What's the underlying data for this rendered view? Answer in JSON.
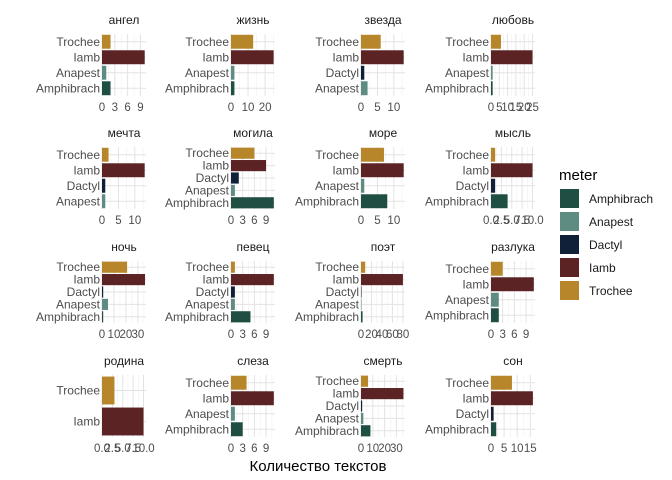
{
  "chart_data": {
    "type": "bar",
    "orientation": "horizontal",
    "facet_layout": {
      "rows": 4,
      "cols": 4
    },
    "xlabel": "Количество текстов",
    "legend": {
      "title": "meter",
      "position": "right",
      "entries": [
        {
          "name": "Amphibrach",
          "color": "#1f4e43"
        },
        {
          "name": "Anapest",
          "color": "#5f8c82"
        },
        {
          "name": "Dactyl",
          "color": "#0f2038"
        },
        {
          "name": "Iamb",
          "color": "#5b2323"
        },
        {
          "name": "Trochee",
          "color": "#b8862a"
        }
      ]
    },
    "facets": [
      {
        "title": "ангел",
        "xlim": [
          0,
          10.3
        ],
        "ticks": [
          "0",
          "3",
          "6",
          "9"
        ],
        "tick_values": [
          0,
          3,
          6,
          9
        ],
        "bars": [
          {
            "meter": "Trochee",
            "value": 2
          },
          {
            "meter": "Iamb",
            "value": 10
          },
          {
            "meter": "Anapest",
            "value": 1
          },
          {
            "meter": "Amphibrach",
            "value": 2
          }
        ]
      },
      {
        "title": "жизнь",
        "xlim": [
          0,
          25.8
        ],
        "ticks": [
          "0",
          "10",
          "20"
        ],
        "tick_values": [
          0,
          10,
          20
        ],
        "bars": [
          {
            "meter": "Trochee",
            "value": 13
          },
          {
            "meter": "Iamb",
            "value": 25
          },
          {
            "meter": "Anapest",
            "value": 2
          },
          {
            "meter": "Amphibrach",
            "value": 2
          }
        ]
      },
      {
        "title": "звезда",
        "xlim": [
          0,
          13.4
        ],
        "ticks": [
          "0",
          "5",
          "10"
        ],
        "tick_values": [
          0,
          5,
          10
        ],
        "bars": [
          {
            "meter": "Trochee",
            "value": 6
          },
          {
            "meter": "Iamb",
            "value": 13
          },
          {
            "meter": "Dactyl",
            "value": 1
          },
          {
            "meter": "Anapest",
            "value": 2
          }
        ]
      },
      {
        "title": "любовь",
        "xlim": [
          0,
          26.5
        ],
        "ticks": [
          "0",
          "5",
          "10",
          "15",
          "20",
          "25"
        ],
        "tick_values": [
          0,
          5,
          10,
          15,
          20,
          25
        ],
        "bars": [
          {
            "meter": "Trochee",
            "value": 6
          },
          {
            "meter": "Iamb",
            "value": 25
          },
          {
            "meter": "Anapest",
            "value": 1
          },
          {
            "meter": "Amphibrach",
            "value": 1
          }
        ]
      },
      {
        "title": "мечта",
        "xlim": [
          0,
          13.4
        ],
        "ticks": [
          "0",
          "5",
          "10"
        ],
        "tick_values": [
          0,
          5,
          10
        ],
        "bars": [
          {
            "meter": "Trochee",
            "value": 2
          },
          {
            "meter": "Iamb",
            "value": 13
          },
          {
            "meter": "Dactyl",
            "value": 1
          },
          {
            "meter": "Anapest",
            "value": 1
          }
        ]
      },
      {
        "title": "могила",
        "xlim": [
          0,
          11.3
        ],
        "ticks": [
          "0",
          "3",
          "6",
          "9"
        ],
        "tick_values": [
          0,
          3,
          6,
          9
        ],
        "bars": [
          {
            "meter": "Trochee",
            "value": 6
          },
          {
            "meter": "Iamb",
            "value": 9
          },
          {
            "meter": "Dactyl",
            "value": 2
          },
          {
            "meter": "Anapest",
            "value": 1
          },
          {
            "meter": "Amphibrach",
            "value": 11
          }
        ]
      },
      {
        "title": "море",
        "xlim": [
          0,
          13.4
        ],
        "ticks": [
          "0",
          "5",
          "10"
        ],
        "tick_values": [
          0,
          5,
          10
        ],
        "bars": [
          {
            "meter": "Trochee",
            "value": 7
          },
          {
            "meter": "Iamb",
            "value": 13
          },
          {
            "meter": "Anapest",
            "value": 1
          },
          {
            "meter": "Amphibrach",
            "value": 8
          }
        ]
      },
      {
        "title": "мысль",
        "xlim": [
          0,
          10.6
        ],
        "ticks": [
          "0.0",
          "2.5",
          "5.0",
          "7.5",
          "10.0"
        ],
        "tick_values": [
          0,
          2.5,
          5,
          7.5,
          10
        ],
        "bars": [
          {
            "meter": "Trochee",
            "value": 1
          },
          {
            "meter": "Iamb",
            "value": 10
          },
          {
            "meter": "Dactyl",
            "value": 1
          },
          {
            "meter": "Amphibrach",
            "value": 4
          }
        ]
      },
      {
        "title": "ночь",
        "xlim": [
          0,
          36.8
        ],
        "ticks": [
          "0",
          "10",
          "20",
          "30"
        ],
        "tick_values": [
          0,
          10,
          20,
          30
        ],
        "bars": [
          {
            "meter": "Trochee",
            "value": 21
          },
          {
            "meter": "Iamb",
            "value": 36
          },
          {
            "meter": "Dactyl",
            "value": 1
          },
          {
            "meter": "Anapest",
            "value": 5
          },
          {
            "meter": "Amphibrach",
            "value": 1
          }
        ]
      },
      {
        "title": "певец",
        "xlim": [
          0,
          11.3
        ],
        "ticks": [
          "0",
          "3",
          "6",
          "9"
        ],
        "tick_values": [
          0,
          3,
          6,
          9
        ],
        "bars": [
          {
            "meter": "Trochee",
            "value": 1
          },
          {
            "meter": "Iamb",
            "value": 11
          },
          {
            "meter": "Dactyl",
            "value": 1
          },
          {
            "meter": "Anapest",
            "value": 1
          },
          {
            "meter": "Amphibrach",
            "value": 5
          }
        ]
      },
      {
        "title": "поэт",
        "xlim": [
          0,
          84
        ],
        "ticks": [
          "0",
          "20",
          "40",
          "60",
          "80"
        ],
        "tick_values": [
          0,
          20,
          40,
          60,
          80
        ],
        "bars": [
          {
            "meter": "Trochee",
            "value": 8
          },
          {
            "meter": "Iamb",
            "value": 80
          },
          {
            "meter": "Dactyl",
            "value": 1
          },
          {
            "meter": "Anapest",
            "value": 1
          },
          {
            "meter": "Amphibrach",
            "value": 3
          }
        ]
      },
      {
        "title": "разлука",
        "xlim": [
          0,
          11.3
        ],
        "ticks": [
          "0",
          "3",
          "6",
          "9"
        ],
        "tick_values": [
          0,
          3,
          6,
          9
        ],
        "bars": [
          {
            "meter": "Trochee",
            "value": 3
          },
          {
            "meter": "Iamb",
            "value": 11
          },
          {
            "meter": "Anapest",
            "value": 2
          },
          {
            "meter": "Amphibrach",
            "value": 2
          }
        ]
      },
      {
        "title": "родина",
        "xlim": [
          0,
          10.6
        ],
        "ticks": [
          "0.0",
          "2.5",
          "5.0",
          "7.5",
          "10.0"
        ],
        "tick_values": [
          0,
          2.5,
          5,
          7.5,
          10
        ],
        "bars": [
          {
            "meter": "Trochee",
            "value": 3
          },
          {
            "meter": "Iamb",
            "value": 10
          }
        ]
      },
      {
        "title": "слеза",
        "xlim": [
          0,
          11.3
        ],
        "ticks": [
          "0",
          "3",
          "6",
          "9"
        ],
        "tick_values": [
          0,
          3,
          6,
          9
        ],
        "bars": [
          {
            "meter": "Trochee",
            "value": 4
          },
          {
            "meter": "Iamb",
            "value": 11
          },
          {
            "meter": "Anapest",
            "value": 1
          },
          {
            "meter": "Amphibrach",
            "value": 3
          }
        ]
      },
      {
        "title": "смерть",
        "xlim": [
          0,
          37.3
        ],
        "ticks": [
          "0",
          "10",
          "20",
          "30"
        ],
        "tick_values": [
          0,
          10,
          20,
          30
        ],
        "bars": [
          {
            "meter": "Trochee",
            "value": 6
          },
          {
            "meter": "Iamb",
            "value": 36
          },
          {
            "meter": "Dactyl",
            "value": 1
          },
          {
            "meter": "Anapest",
            "value": 2
          },
          {
            "meter": "Amphibrach",
            "value": 8
          }
        ]
      },
      {
        "title": "сон",
        "xlim": [
          0,
          16.8
        ],
        "ticks": [
          "0",
          "5",
          "10",
          "15"
        ],
        "tick_values": [
          0,
          5,
          10,
          15
        ],
        "bars": [
          {
            "meter": "Trochee",
            "value": 8
          },
          {
            "meter": "Iamb",
            "value": 16
          },
          {
            "meter": "Dactyl",
            "value": 1
          },
          {
            "meter": "Amphibrach",
            "value": 2
          }
        ]
      }
    ]
  }
}
